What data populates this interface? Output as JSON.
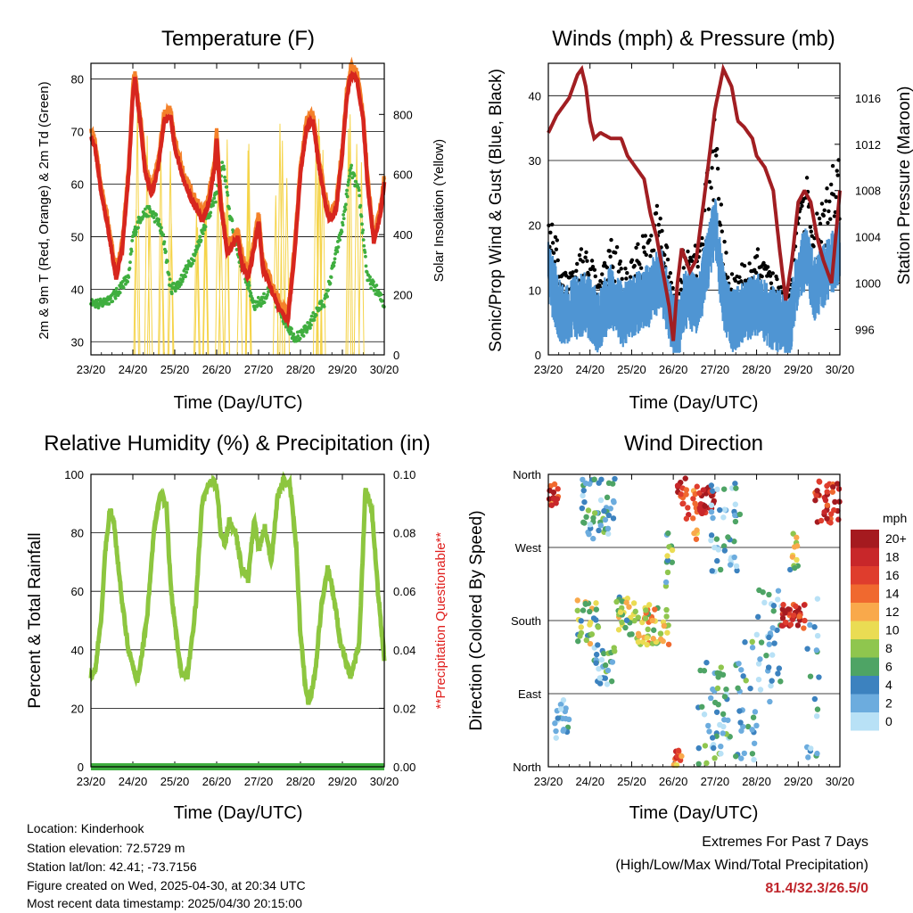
{
  "chart_data": [
    {
      "type": "line",
      "title": "Temperature (F)",
      "xlabel": "Time (Day/UTC)",
      "ylabel": "2m & 9m T (Red, Orange) & 2m Td (Green)",
      "y2label": "Solar Insolation (Yellow)",
      "x_ticks": [
        "23/20",
        "24/20",
        "25/20",
        "26/20",
        "27/20",
        "28/20",
        "29/20",
        "30/20"
      ],
      "xlim": [
        0,
        7
      ],
      "ylim": [
        27.5,
        83
      ],
      "y_ticks": [
        30,
        40,
        50,
        60,
        70,
        80
      ],
      "y2lim": [
        0,
        970
      ],
      "y2_ticks": [
        0,
        200,
        400,
        600,
        800
      ],
      "grid": true,
      "colors": {
        "t2m": "#d7261e",
        "t9m": "#f4812a",
        "td": "#3fae3f",
        "solar": "#f5d44a"
      },
      "series": [
        {
          "key": "t2m",
          "x": [
            0,
            0.1,
            0.25,
            0.4,
            0.5,
            0.6,
            0.75,
            0.9,
            1.0,
            1.05,
            1.2,
            1.3,
            1.45,
            1.6,
            1.75,
            1.9,
            2.0,
            2.2,
            2.4,
            2.55,
            2.65,
            2.8,
            2.95,
            3.0,
            3.1,
            3.25,
            3.35,
            3.5,
            3.6,
            3.75,
            3.9,
            4.0,
            4.1,
            4.3,
            4.5,
            4.7,
            4.85,
            5.0,
            5.15,
            5.3,
            5.45,
            5.6,
            5.7,
            5.85,
            6.0,
            6.1,
            6.2,
            6.35,
            6.5,
            6.6,
            6.75,
            6.9,
            7.0
          ],
          "y": [
            69,
            67,
            58,
            52,
            47,
            42,
            48,
            62,
            77,
            80,
            70,
            62,
            58,
            63,
            72,
            73,
            67,
            61,
            57,
            55,
            53,
            56,
            63,
            69,
            56,
            47,
            48,
            50,
            45,
            42,
            48,
            53,
            44,
            40,
            36,
            34,
            46,
            62,
            71,
            72,
            63,
            56,
            53,
            55,
            66,
            76,
            81,
            80,
            72,
            60,
            49,
            54,
            60
          ]
        },
        {
          "key": "td",
          "x": [
            0,
            0.2,
            0.4,
            0.6,
            0.75,
            0.9,
            1.0,
            1.2,
            1.4,
            1.6,
            1.75,
            1.9,
            2.1,
            2.3,
            2.5,
            2.7,
            2.9,
            3.0,
            3.15,
            3.3,
            3.5,
            3.7,
            3.9,
            4.1,
            4.3,
            4.5,
            4.7,
            4.85,
            5.0,
            5.2,
            5.4,
            5.6,
            5.8,
            6.0,
            6.2,
            6.4,
            6.6,
            6.8,
            7.0
          ],
          "y": [
            38,
            37,
            38,
            39,
            41,
            42,
            50,
            54,
            55,
            53,
            49,
            40,
            41,
            44,
            47,
            52,
            56,
            58,
            64,
            55,
            47,
            42,
            37,
            38,
            40,
            36,
            33,
            31,
            31,
            33,
            36,
            38,
            45,
            52,
            63,
            58,
            42,
            40,
            37
          ]
        },
        {
          "key": "solar",
          "peaks_x": [
            1.25,
            1.75,
            2.6,
            3.1,
            3.6,
            4.5,
            5.5,
            6.3
          ],
          "peaks_y": [
            920,
            760,
            820,
            740,
            720,
            900,
            910,
            960
          ]
        }
      ]
    },
    {
      "type": "line",
      "title": "Winds (mph) & Pressure (mb)",
      "xlabel": "Time (Day/UTC)",
      "ylabel": "Sonic/Prop Wind & Gust (Blue, Black)",
      "y2label": "Station Pressure (Maroon)",
      "x_ticks": [
        "23/20",
        "24/20",
        "25/20",
        "26/20",
        "27/20",
        "28/20",
        "29/20",
        "30/20"
      ],
      "xlim": [
        0,
        7
      ],
      "ylim": [
        0,
        45
      ],
      "y_ticks": [
        0,
        10,
        20,
        30,
        40
      ],
      "y2lim": [
        993.8,
        1019
      ],
      "y2_ticks": [
        996,
        1000,
        1004,
        1008,
        1012,
        1016
      ],
      "grid": true,
      "colors": {
        "wind": "#4f95d3",
        "gust": "#000000",
        "pressure": "#a11e22"
      },
      "series": [
        {
          "key": "pressure",
          "x": [
            0,
            0.2,
            0.5,
            0.7,
            0.8,
            0.9,
            1.0,
            1.1,
            1.25,
            1.5,
            1.75,
            1.9,
            2.1,
            2.3,
            2.45,
            2.6,
            2.75,
            2.9,
            3.0,
            3.1,
            3.2,
            3.4,
            3.55,
            3.8,
            4.0,
            4.2,
            4.4,
            4.55,
            4.7,
            4.9,
            5.0,
            5.2,
            5.4,
            5.55,
            5.7,
            5.85,
            6.0,
            6.15,
            6.3,
            6.45,
            6.6,
            6.8,
            7.0
          ],
          "y": [
            1013,
            1014.5,
            1016,
            1018,
            1018.5,
            1017,
            1014,
            1012.5,
            1013,
            1012.5,
            1012.5,
            1011,
            1010,
            1009,
            1006,
            1004,
            1001,
            998,
            995,
            1000,
            1003,
            1001,
            1002,
            1009,
            1015,
            1018.5,
            1017,
            1014,
            1013.5,
            1012.5,
            1011,
            1010,
            1008,
            1003,
            998.5,
            1002,
            1007,
            1008,
            1007,
            1004,
            1002,
            1000,
            1008
          ]
        },
        {
          "key": "wind_gust",
          "note": "scatter of wind speed and gust",
          "max": 26.5
        }
      ]
    },
    {
      "type": "line",
      "title": "Relative Humidity (%) & Precipitation (in)",
      "xlabel": "Time (Day/UTC)",
      "ylabel": "Percent & Total Rainfall",
      "y2label": "**Precipitation Questionable**",
      "x_ticks": [
        "23/20",
        "24/20",
        "25/20",
        "26/20",
        "27/20",
        "28/20",
        "29/20",
        "30/20"
      ],
      "xlim": [
        0,
        7
      ],
      "ylim": [
        0,
        100
      ],
      "y_ticks": [
        0,
        20,
        40,
        60,
        80,
        100
      ],
      "y2lim": [
        0,
        0.1
      ],
      "y2_ticks": [
        "0.00",
        "0.02",
        "0.04",
        "0.06",
        "0.08",
        "0.10"
      ],
      "grid": true,
      "colors": {
        "rh": "#8dc63f",
        "precip": "#3fae3f",
        "warn": "#e0201e"
      },
      "series": [
        {
          "key": "rh",
          "x": [
            0,
            0.1,
            0.25,
            0.35,
            0.45,
            0.55,
            0.7,
            0.8,
            0.9,
            1.0,
            1.1,
            1.2,
            1.35,
            1.5,
            1.65,
            1.8,
            1.9,
            2.05,
            2.15,
            2.3,
            2.5,
            2.65,
            2.85,
            3.0,
            3.1,
            3.2,
            3.3,
            3.45,
            3.6,
            3.75,
            3.9,
            4.0,
            4.15,
            4.3,
            4.45,
            4.6,
            4.75,
            4.9,
            5.0,
            5.1,
            5.2,
            5.35,
            5.5,
            5.65,
            5.8,
            5.95,
            6.1,
            6.2,
            6.4,
            6.55,
            6.7,
            6.85,
            7.0
          ],
          "y": [
            31,
            33,
            52,
            75,
            88,
            83,
            62,
            50,
            40,
            34,
            29,
            37,
            53,
            80,
            93,
            90,
            62,
            43,
            33,
            30,
            55,
            90,
            98,
            96,
            80,
            76,
            84,
            80,
            68,
            64,
            85,
            74,
            82,
            70,
            92,
            98,
            96,
            75,
            45,
            30,
            21,
            32,
            55,
            68,
            58,
            43,
            35,
            31,
            42,
            95,
            88,
            60,
            37
          ]
        },
        {
          "key": "precip",
          "total": 0
        }
      ]
    },
    {
      "type": "scatter",
      "title": "Wind Direction",
      "xlabel": "Time (Day/UTC)",
      "ylabel": "Direction (Colored By Speed)",
      "x_ticks": [
        "23/20",
        "24/20",
        "25/20",
        "26/20",
        "27/20",
        "28/20",
        "29/20",
        "30/20"
      ],
      "xlim": [
        0,
        7
      ],
      "y_ticks": [
        "North",
        "East",
        "South",
        "West",
        "North"
      ],
      "y_values": [
        0,
        90,
        180,
        270,
        360
      ],
      "grid": true,
      "legend": {
        "title": "mph",
        "labels": [
          "20+",
          "18",
          "16",
          "14",
          "12",
          "10",
          "8",
          "6",
          "4",
          "2",
          "0"
        ],
        "colors": [
          "#a51a1f",
          "#c8272a",
          "#df3d2d",
          "#f0692f",
          "#f9a94b",
          "#eadc53",
          "#8fc64e",
          "#4ea465",
          "#3c82bf",
          "#6cacde",
          "#b8e1f6"
        ],
        "placement": "right"
      },
      "clusters": [
        {
          "x0": 0.0,
          "x1": 0.25,
          "d0": 320,
          "d1": 355,
          "spd": 16
        },
        {
          "x0": 0.15,
          "x1": 0.5,
          "d0": 25,
          "d1": 85,
          "spd": 3
        },
        {
          "x0": 0.8,
          "x1": 1.6,
          "d0": 280,
          "d1": 355,
          "spd": 4
        },
        {
          "x0": 0.7,
          "x1": 1.2,
          "d0": 150,
          "d1": 210,
          "spd": 8
        },
        {
          "x0": 1.1,
          "x1": 1.6,
          "d0": 100,
          "d1": 150,
          "spd": 4
        },
        {
          "x0": 1.6,
          "x1": 2.1,
          "d0": 160,
          "d1": 210,
          "spd": 8
        },
        {
          "x0": 2.1,
          "x1": 2.9,
          "d0": 150,
          "d1": 200,
          "spd": 10
        },
        {
          "x0": 2.8,
          "x1": 3.0,
          "d0": 220,
          "d1": 290,
          "spd": 6
        },
        {
          "x0": 3.1,
          "x1": 3.3,
          "d0": 320,
          "d1": 355,
          "spd": 18
        },
        {
          "x0": 3.3,
          "x1": 3.6,
          "d0": 280,
          "d1": 345,
          "spd": 14
        },
        {
          "x0": 3.6,
          "x1": 4.0,
          "d0": 310,
          "d1": 345,
          "spd": 20
        },
        {
          "x0": 3.0,
          "x1": 3.2,
          "d0": 2,
          "d1": 20,
          "spd": 14
        },
        {
          "x0": 3.6,
          "x1": 4.4,
          "d0": 0,
          "d1": 140,
          "spd": 4
        },
        {
          "x0": 3.9,
          "x1": 4.6,
          "d0": 240,
          "d1": 350,
          "spd": 2
        },
        {
          "x0": 4.5,
          "x1": 5.0,
          "d0": 0,
          "d1": 170,
          "spd": 4
        },
        {
          "x0": 5.0,
          "x1": 5.6,
          "d0": 80,
          "d1": 220,
          "spd": 3
        },
        {
          "x0": 5.6,
          "x1": 6.2,
          "d0": 170,
          "d1": 200,
          "spd": 18
        },
        {
          "x0": 5.8,
          "x1": 6.0,
          "d0": 240,
          "d1": 290,
          "spd": 8
        },
        {
          "x0": 6.4,
          "x1": 7.0,
          "d0": 300,
          "d1": 355,
          "spd": 18
        },
        {
          "x0": 6.2,
          "x1": 6.5,
          "d0": 0,
          "d1": 220,
          "spd": 3
        }
      ]
    }
  ],
  "info": {
    "location": "Location: Kinderhook",
    "elevation": "Station elevation: 72.5729 m",
    "latlon": "Station lat/lon: 42.41; -73.7156",
    "created": "Figure created on Wed, 2025-04-30, at 20:34 UTC",
    "recent": "Most recent data timestamp: 2025/04/30 20:15:00"
  },
  "extremes": {
    "title": "Extremes For Past 7 Days",
    "subtitle": "(High/Low/Max Wind/Total Precipitation)",
    "values": "81.4/32.3/26.5/0",
    "color": "#c0272d"
  }
}
